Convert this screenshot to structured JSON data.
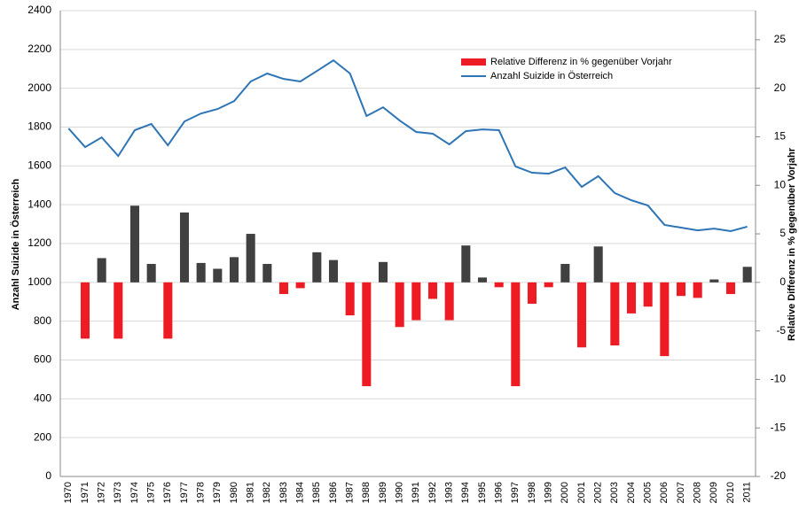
{
  "chart_data": {
    "type": "bar_line",
    "ylabel": "Anzahl Suizide in Österreich",
    "y2label": "Relative Differenz in % gegenüber Vorjahr",
    "categories": [
      "1970",
      "1971",
      "1972",
      "1973",
      "1974",
      "1975",
      "1976",
      "1977",
      "1978",
      "1979",
      "1980",
      "1981",
      "1982",
      "1983",
      "1984",
      "1985",
      "1986",
      "1987",
      "1988",
      "1989",
      "1990",
      "1991",
      "1992",
      "1993",
      "1994",
      "1995",
      "1996",
      "1997",
      "1998",
      "1999",
      "2000",
      "2001",
      "2002",
      "2003",
      "2004",
      "2005",
      "2006",
      "2007",
      "2008",
      "2009",
      "2010",
      "2011"
    ],
    "series": [
      {
        "name": "Relative Differenz in % gegenüber Vorjahr",
        "type": "bar",
        "axis": "y2",
        "color": "#ed1c24",
        "positive_color": "#404040",
        "values": [
          null,
          -5.8,
          2.5,
          -5.8,
          7.9,
          1.9,
          -5.8,
          7.2,
          2.0,
          1.4,
          2.6,
          5.0,
          1.9,
          -1.2,
          -0.6,
          3.1,
          2.3,
          -3.4,
          -10.7,
          2.1,
          -4.6,
          -3.9,
          -1.7,
          -3.9,
          3.8,
          0.5,
          -0.5,
          -10.7,
          -2.2,
          -0.5,
          1.9,
          -6.7,
          3.7,
          -6.5,
          -3.2,
          -2.5,
          -7.6,
          -1.4,
          -1.6,
          0.3,
          -1.2,
          1.6
        ]
      },
      {
        "name": "Anzahl Suizide in Österreich",
        "type": "line",
        "axis": "y",
        "color": "#2e75b6",
        "values": [
          1793,
          1697,
          1747,
          1651,
          1784,
          1816,
          1706,
          1829,
          1870,
          1893,
          1934,
          2035,
          2076,
          2048,
          2035,
          2089,
          2144,
          2076,
          1857,
          1902,
          1834,
          1775,
          1766,
          1711,
          1779,
          1788,
          1784,
          1597,
          1565,
          1560,
          1592,
          1492,
          1547,
          1460,
          1423,
          1396,
          1296,
          1282,
          1268,
          1277,
          1264,
          1287
        ]
      }
    ],
    "ylim": [
      0,
      2400
    ],
    "yticks": [
      0,
      200,
      400,
      600,
      800,
      1000,
      1200,
      1400,
      1600,
      1800,
      2000,
      2200,
      2400
    ],
    "y2lim": [
      -20,
      28
    ],
    "y2ticks": [
      -20,
      -15,
      -10,
      -5,
      0,
      5,
      10,
      15,
      20,
      25
    ],
    "grid": true,
    "legend": "top-right"
  }
}
